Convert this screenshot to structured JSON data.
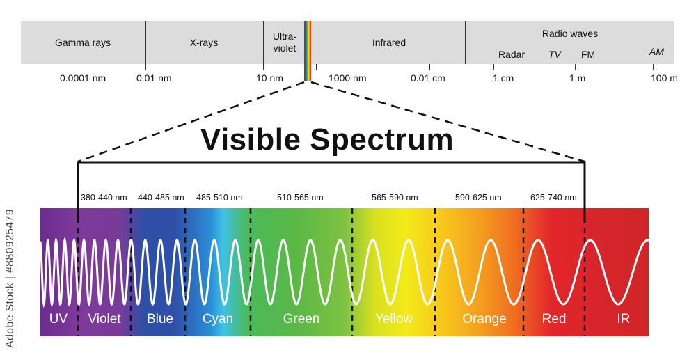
{
  "em_spectrum": {
    "bands": [
      {
        "name": "gamma",
        "label": "Gamma rays"
      },
      {
        "name": "xray",
        "label": "X-rays"
      },
      {
        "name": "uv",
        "label": "Ultra-\nviolet"
      },
      {
        "name": "infrared",
        "label": "Infrared"
      },
      {
        "name": "radio",
        "label": "Radio waves"
      }
    ],
    "radio_sub": [
      "Radar",
      "TV",
      "FM",
      "AM"
    ],
    "scale_labels": [
      "0.0001 nm",
      "0.01 nm",
      "10 nm",
      "1000 nm",
      "0.01 cm",
      "1 cm",
      "1 m",
      "100 m"
    ]
  },
  "title": "Visible Spectrum",
  "visible_bands": [
    {
      "range": "380-440 nm",
      "name": "Violet"
    },
    {
      "range": "440-485 nm",
      "name": "Blue"
    },
    {
      "range": "485-510 nm",
      "name": "Cyan"
    },
    {
      "range": "510-565 nm",
      "name": "Green"
    },
    {
      "range": "565-590 nm",
      "name": "Yellow"
    },
    {
      "range": "590-625 nm",
      "name": "Orange"
    },
    {
      "range": "625-740 nm",
      "name": "Red"
    }
  ],
  "outer_labels": {
    "left": "UV",
    "right": "IR"
  },
  "watermark": "Adobe Stock | #880925479",
  "colors": {
    "bar_bg": "#dcdcdc",
    "wave": "#ffffff",
    "text": "#111111"
  }
}
